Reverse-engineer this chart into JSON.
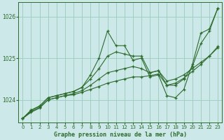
{
  "title": "Graphe pression niveau de la mer (hPa)",
  "background_color": "#cce8e8",
  "grid_color": "#99ccbb",
  "line_color": "#2d6b2d",
  "marker_color": "#2d6b2d",
  "xlim": [
    -0.5,
    23.5
  ],
  "ylim": [
    1023.45,
    1026.35
  ],
  "yticks": [
    1024,
    1025,
    1026
  ],
  "xticks": [
    0,
    1,
    2,
    3,
    4,
    5,
    6,
    7,
    8,
    9,
    10,
    11,
    12,
    13,
    14,
    15,
    16,
    17,
    18,
    19,
    20,
    21,
    22,
    23
  ],
  "series": [
    [
      1023.55,
      1023.75,
      1023.85,
      1024.05,
      1024.1,
      1024.15,
      1024.2,
      1024.3,
      1024.6,
      1025.0,
      1025.65,
      1025.3,
      1025.3,
      1024.95,
      1025.0,
      1024.55,
      1024.6,
      1024.1,
      1024.05,
      1024.25,
      1024.85,
      1025.6,
      1025.7,
      1026.2
    ],
    [
      1023.55,
      1023.75,
      1023.85,
      1024.05,
      1024.1,
      1024.15,
      1024.2,
      1024.3,
      1024.5,
      1024.75,
      1025.05,
      1025.15,
      1025.1,
      1025.05,
      1025.05,
      1024.65,
      1024.7,
      1024.35,
      1024.35,
      1024.5,
      1024.8,
      1025.35,
      1025.65,
      1026.2
    ],
    [
      1023.55,
      1023.72,
      1023.82,
      1024.0,
      1024.05,
      1024.1,
      1024.15,
      1024.22,
      1024.35,
      1024.5,
      1024.65,
      1024.7,
      1024.75,
      1024.8,
      1024.75,
      1024.65,
      1024.7,
      1024.45,
      1024.5,
      1024.6,
      1024.75,
      1024.9,
      1025.05,
      1025.25
    ],
    [
      1023.55,
      1023.7,
      1023.8,
      1024.0,
      1024.05,
      1024.1,
      1024.12,
      1024.18,
      1024.25,
      1024.32,
      1024.4,
      1024.45,
      1024.5,
      1024.55,
      1024.55,
      1024.58,
      1024.62,
      1024.35,
      1024.4,
      1024.52,
      1024.68,
      1024.85,
      1025.05,
      1025.28
    ]
  ]
}
